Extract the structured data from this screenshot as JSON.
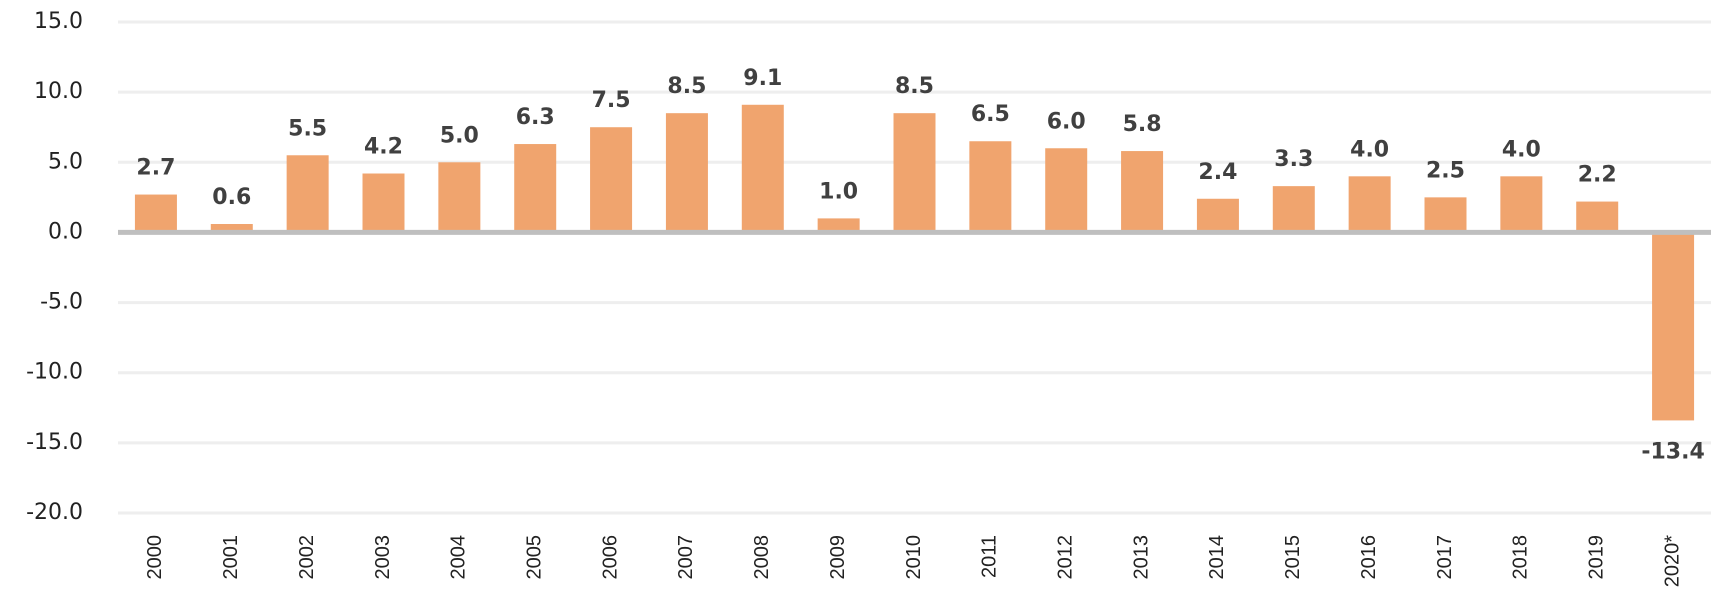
{
  "chart_data": {
    "type": "bar",
    "categories": [
      "2000",
      "2001",
      "2002",
      "2003",
      "2004",
      "2005",
      "2006",
      "2007",
      "2008",
      "2009",
      "2010",
      "2011",
      "2012",
      "2013",
      "2014",
      "2015",
      "2016",
      "2017",
      "2018",
      "2019",
      "2020*"
    ],
    "values": [
      2.7,
      0.6,
      5.5,
      4.2,
      5.0,
      6.3,
      7.5,
      8.5,
      9.1,
      1.0,
      8.5,
      6.5,
      6.0,
      5.8,
      2.4,
      3.3,
      4.0,
      2.5,
      4.0,
      2.2,
      -13.4
    ],
    "value_labels": [
      "2.7",
      "0.6",
      "5.5",
      "4.2",
      "5.0",
      "6.3",
      "7.5",
      "8.5",
      "9.1",
      "1.0",
      "8.5",
      "6.5",
      "6.0",
      "5.8",
      "2.4",
      "3.3",
      "4.0",
      "2.5",
      "4.0",
      "2.2",
      "-13.4"
    ],
    "color": "#f0a46e",
    "ylim": [
      -20,
      15
    ],
    "yticks": [
      {
        "value": -20,
        "label": "-20.0"
      },
      {
        "value": -15,
        "label": "-15.0"
      },
      {
        "value": -10,
        "label": "-10.0"
      },
      {
        "value": -5,
        "label": "-5.0"
      },
      {
        "value": 0,
        "label": "0.0"
      },
      {
        "value": 5,
        "label": "5.0"
      },
      {
        "value": 10,
        "label": "10.0"
      },
      {
        "value": 15,
        "label": "15.0"
      }
    ],
    "grid": true
  }
}
